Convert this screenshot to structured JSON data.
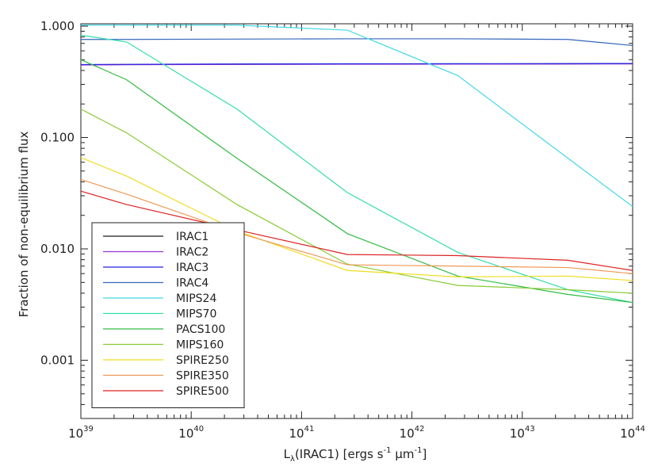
{
  "chart_data": {
    "type": "line",
    "xlabel": "L",
    "xlabel_sub": "λ",
    "xlabel_rest": "(IRAC1) [ergs s",
    "xlabel_exp1": "-1",
    "xlabel_mu": " μm",
    "xlabel_exp2": "-1",
    "xlabel_close": "]",
    "ylabel": "Fraction of non-equilibrium flux",
    "x_scale": "log",
    "y_scale": "log",
    "xlim": [
      1e+39,
      1e+44
    ],
    "ylim": [
      0.0003,
      1.05
    ],
    "x_ticks": [
      {
        "base": "10",
        "exp": "39",
        "value": 1e+39
      },
      {
        "base": "10",
        "exp": "40",
        "value": 1e+40
      },
      {
        "base": "10",
        "exp": "41",
        "value": 1e+41
      },
      {
        "base": "10",
        "exp": "42",
        "value": 1e+42
      },
      {
        "base": "10",
        "exp": "43",
        "value": 1e+43
      },
      {
        "base": "10",
        "exp": "44",
        "value": 1e+44
      }
    ],
    "y_ticks": [
      {
        "label": "0.001",
        "value": 0.001
      },
      {
        "label": "0.010",
        "value": 0.01
      },
      {
        "label": "0.100",
        "value": 0.1
      },
      {
        "label": "1.000",
        "value": 1.0
      }
    ],
    "grid": false,
    "legend_position": "bottom-left",
    "x": [
      1e+39,
      2.6e+39,
      2.6e+40,
      2.6e+41,
      2.6e+42,
      2.6e+43,
      1e+44
    ],
    "series": [
      {
        "name": "IRAC1",
        "color": "#1a1a1a",
        "values": [
          0.45,
          0.452,
          0.455,
          0.457,
          0.458,
          0.459,
          0.46
        ]
      },
      {
        "name": "IRAC2",
        "color": "#9933cc",
        "values": [
          0.448,
          0.45,
          0.453,
          0.455,
          0.456,
          0.457,
          0.458
        ]
      },
      {
        "name": "IRAC3",
        "color": "#2222dd",
        "values": [
          0.452,
          0.454,
          0.457,
          0.459,
          0.46,
          0.461,
          0.462
        ]
      },
      {
        "name": "IRAC4",
        "color": "#3366bb",
        "values": [
          0.76,
          0.76,
          0.765,
          0.77,
          0.77,
          0.76,
          0.67
        ]
      },
      {
        "name": "MIPS24",
        "color": "#44d8e8",
        "values": [
          1.02,
          1.02,
          1.02,
          0.92,
          0.36,
          0.065,
          0.024
        ]
      },
      {
        "name": "MIPS70",
        "color": "#33ddaa",
        "values": [
          0.83,
          0.72,
          0.18,
          0.032,
          0.0093,
          0.0043,
          0.0033
        ]
      },
      {
        "name": "PACS100",
        "color": "#33bb44",
        "values": [
          0.5,
          0.33,
          0.065,
          0.0137,
          0.0057,
          0.0039,
          0.0033
        ]
      },
      {
        "name": "MIPS160",
        "color": "#88cc33",
        "values": [
          0.18,
          0.11,
          0.025,
          0.0073,
          0.0047,
          0.0043,
          0.004
        ]
      },
      {
        "name": "SPIRE250",
        "color": "#eedd22",
        "values": [
          0.066,
          0.045,
          0.0145,
          0.0064,
          0.0056,
          0.0057,
          0.0052
        ]
      },
      {
        "name": "SPIRE350",
        "color": "#ee9955",
        "values": [
          0.042,
          0.031,
          0.014,
          0.0072,
          0.007,
          0.0068,
          0.006
        ]
      },
      {
        "name": "SPIRE500",
        "color": "#dd2222",
        "values": [
          0.033,
          0.025,
          0.0148,
          0.0089,
          0.0087,
          0.0079,
          0.0064
        ]
      }
    ]
  }
}
